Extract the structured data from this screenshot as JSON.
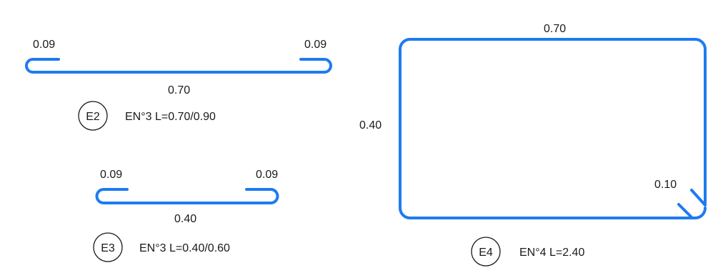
{
  "colors": {
    "bar": "#1e7bf0",
    "text": "#1a1a1a"
  },
  "e2": {
    "tag": "E2",
    "spec": "EN°3 L=0.70/0.90",
    "length": "0.70",
    "hook_left": "0.09",
    "hook_right": "0.09"
  },
  "e3": {
    "tag": "E3",
    "spec": "EN°3 L=0.40/0.60",
    "length": "0.40",
    "hook_left": "0.09",
    "hook_right": "0.09"
  },
  "e4": {
    "tag": "E4",
    "spec": "EN°4 L=2.40",
    "width": "0.70",
    "height": "0.40",
    "hook": "0.10"
  }
}
